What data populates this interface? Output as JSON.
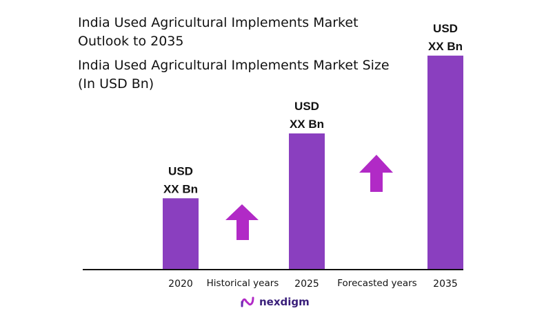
{
  "title": "India Used Agricultural Implements Market Outlook to 2035",
  "subtitle": "India Used Agricultural Implements Market Size (In USD Bn)",
  "colors": {
    "bar": "#8a3fbf",
    "arrow": "#b12ac6",
    "axis": "#111111"
  },
  "chart_data": {
    "type": "bar",
    "categories": [
      "2020",
      "2025",
      "2035"
    ],
    "values": [
      22,
      42,
      66
    ],
    "ylim": [
      0,
      70
    ],
    "value_labels": [
      [
        "USD",
        "XX Bn"
      ],
      [
        "USD",
        "XX Bn"
      ],
      [
        "USD",
        "XX Bn"
      ]
    ],
    "period_labels": [
      "Historical years",
      "Forecasted years"
    ],
    "grid": false,
    "legend": "none"
  },
  "logo": {
    "text": "nexdigm",
    "icon": "nexdigm-logo-icon"
  }
}
